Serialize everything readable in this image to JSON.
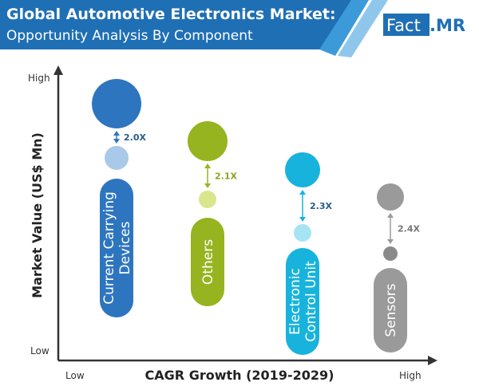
{
  "header": {
    "title": "Global Automotive Electronics Market:",
    "subtitle": "Opportunity Analysis By Component",
    "logo_part1": "Fact",
    "logo_part2": ".MR",
    "colors": {
      "band": "#1f6fb5",
      "stripe1": "#3d9ad8",
      "stripe2": "#8fc7ec"
    }
  },
  "chart_data": {
    "type": "bubble",
    "xlabel": "CAGR Growth (2019-2029)",
    "ylabel": "Market Value (US$ Mn)",
    "x_ticks": [
      "Low",
      "High"
    ],
    "y_ticks": [
      "Low",
      "High"
    ],
    "grid": false,
    "series": [
      {
        "name": "Current Carrying Devices",
        "multiplier": "2.0X",
        "color": "#2e75c0",
        "light": "#a9c9e8"
      },
      {
        "name": "Others",
        "multiplier": "2.1X",
        "color": "#96b41f",
        "light": "#d9e68c"
      },
      {
        "name": "Electronic Control Unit",
        "multiplier": "2.3X",
        "color": "#17b3dc",
        "light": "#a6e4f4"
      },
      {
        "name": "Sensors",
        "multiplier": "2.4X",
        "color": "#9a9a9a",
        "light": "#8a8a8a"
      }
    ]
  }
}
